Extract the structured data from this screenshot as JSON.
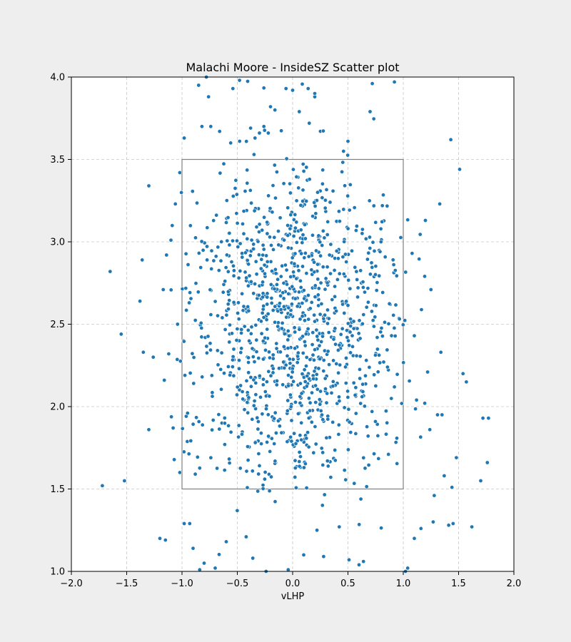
{
  "chart_data": {
    "type": "scatter",
    "title": "Malachi Moore - InsideSZ Scatter plot",
    "xlabel": "vLHP",
    "ylabel": "",
    "xlim": [
      -2.0,
      2.0
    ],
    "ylim": [
      1.0,
      4.0
    ],
    "x_ticks": [
      "−2.0",
      "−1.5",
      "−1.0",
      "−0.5",
      "0.0",
      "0.5",
      "1.0",
      "1.5",
      "2.0"
    ],
    "y_ticks": [
      "1.0",
      "1.5",
      "2.0",
      "2.5",
      "3.0",
      "3.5",
      "4.0"
    ],
    "grid": true,
    "strike_zone": {
      "x": [
        -1.0,
        1.0
      ],
      "y": [
        1.5,
        3.5
      ]
    },
    "point_color": "#1f77b4",
    "zone_color": "#808080",
    "points": [
      [
        -1.72,
        1.52
      ],
      [
        -1.65,
        2.82
      ],
      [
        -1.55,
        2.44
      ],
      [
        -1.52,
        1.55
      ],
      [
        -1.38,
        2.64
      ],
      [
        -1.36,
        2.89
      ],
      [
        -1.35,
        2.33
      ],
      [
        -1.3,
        3.34
      ],
      [
        -1.3,
        1.86
      ],
      [
        -1.26,
        2.3
      ],
      [
        -1.2,
        1.2
      ],
      [
        -1.17,
        2.71
      ],
      [
        -1.16,
        2.16
      ],
      [
        -1.15,
        1.19
      ],
      [
        -1.14,
        2.92
      ],
      [
        -1.12,
        2.32
      ],
      [
        -1.1,
        3.01
      ],
      [
        -1.08,
        1.87
      ],
      [
        -1.06,
        3.23
      ],
      [
        -1.04,
        2.5
      ],
      [
        -1.02,
        3.42
      ],
      [
        -1.02,
        1.6
      ],
      [
        -0.98,
        3.63
      ],
      [
        -0.98,
        1.29
      ],
      [
        -0.95,
        1.96
      ],
      [
        -0.93,
        1.29
      ],
      [
        -0.9,
        1.14
      ],
      [
        -0.88,
        1.59
      ],
      [
        -0.85,
        3.95
      ],
      [
        -0.84,
        1.01
      ],
      [
        -0.82,
        3.7
      ],
      [
        -0.8,
        1.05
      ],
      [
        -0.78,
        4.0
      ],
      [
        -0.76,
        3.88
      ],
      [
        -0.74,
        3.7
      ],
      [
        -0.7,
        1.02
      ],
      [
        -0.66,
        3.67
      ],
      [
        -0.6,
        1.18
      ],
      [
        -0.56,
        3.6
      ],
      [
        -0.54,
        3.93
      ],
      [
        -0.48,
        3.98
      ],
      [
        -0.42,
        1.21
      ],
      [
        -0.38,
        3.69
      ],
      [
        -0.36,
        1.08
      ],
      [
        -0.34,
        3.63
      ],
      [
        -0.3,
        3.66
      ],
      [
        -0.26,
        3.7
      ],
      [
        -0.24,
        1.0
      ],
      [
        -0.22,
        3.66
      ],
      [
        -0.2,
        3.82
      ],
      [
        -0.16,
        3.8
      ],
      [
        -0.06,
        3.93
      ],
      [
        -0.04,
        1.01
      ],
      [
        0.0,
        3.92
      ],
      [
        0.06,
        3.79
      ],
      [
        0.1,
        1.1
      ],
      [
        0.14,
        3.93
      ],
      [
        0.15,
        3.72
      ],
      [
        0.2,
        3.88
      ],
      [
        0.2,
        3.9
      ],
      [
        0.28,
        1.09
      ],
      [
        0.46,
        3.55
      ],
      [
        0.5,
        3.61
      ],
      [
        0.51,
        1.07
      ],
      [
        0.6,
        1.04
      ],
      [
        0.64,
        1.06
      ],
      [
        0.7,
        3.79
      ],
      [
        0.72,
        3.96
      ],
      [
        0.92,
        3.97
      ],
      [
        1.02,
        1.0
      ],
      [
        1.04,
        1.02
      ],
      [
        1.1,
        1.2
      ],
      [
        1.16,
        1.26
      ],
      [
        1.2,
        3.13
      ],
      [
        1.22,
        2.21
      ],
      [
        1.24,
        1.86
      ],
      [
        1.25,
        2.71
      ],
      [
        1.27,
        1.3
      ],
      [
        1.28,
        1.46
      ],
      [
        1.31,
        1.95
      ],
      [
        1.33,
        3.23
      ],
      [
        1.34,
        2.33
      ],
      [
        1.35,
        1.95
      ],
      [
        1.37,
        1.58
      ],
      [
        1.41,
        1.28
      ],
      [
        1.43,
        3.62
      ],
      [
        1.44,
        1.51
      ],
      [
        1.45,
        1.29
      ],
      [
        1.48,
        1.69
      ],
      [
        1.51,
        3.44
      ],
      [
        1.54,
        2.2
      ],
      [
        1.57,
        2.15
      ],
      [
        1.62,
        1.27
      ],
      [
        1.7,
        1.55
      ],
      [
        1.72,
        1.93
      ],
      [
        1.76,
        1.66
      ],
      [
        1.77,
        1.93
      ],
      [
        1.1,
        2.43
      ],
      [
        1.08,
        2.93
      ],
      [
        1.12,
        2.04
      ]
    ]
  }
}
